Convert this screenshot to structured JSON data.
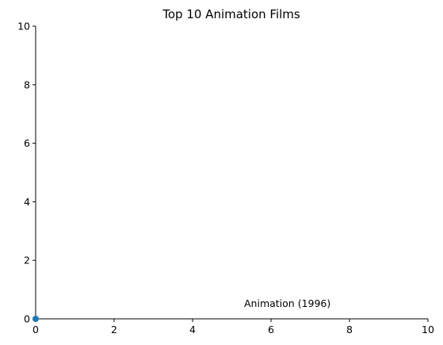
{
  "chart_data": {
    "type": "scatter",
    "title": "Top 10 Animation Films",
    "xlabel": "",
    "ylabel": "",
    "xlim": [
      0,
      10
    ],
    "ylim": [
      0,
      10
    ],
    "xticks": [
      "0",
      "2",
      "4",
      "6",
      "8",
      "10"
    ],
    "yticks": [
      "0",
      "2",
      "4",
      "6",
      "8",
      "10"
    ],
    "grid": false,
    "marker_color": "#1f77b4",
    "points": [
      {
        "x": 0,
        "y": 0,
        "label": "Animation (1996)"
      }
    ]
  }
}
